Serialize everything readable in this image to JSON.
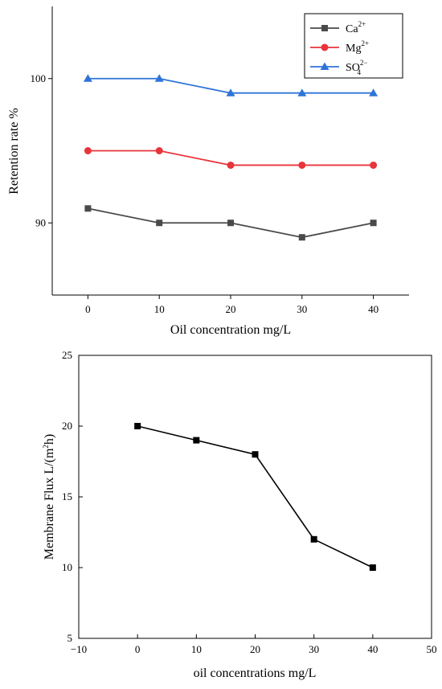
{
  "chart_data": [
    {
      "type": "line",
      "xlabel": "Oil concentration mg/L",
      "ylabel": "Retention rate %",
      "x": [
        0,
        10,
        20,
        30,
        40
      ],
      "xticks": [
        "0",
        "10",
        "20",
        "30",
        "40"
      ],
      "yticks": [
        "90",
        "100"
      ],
      "xlim": [
        -5,
        45
      ],
      "ylim": [
        85,
        105
      ],
      "grid": false,
      "legend": "top-right",
      "series": [
        {
          "name": "Ca²⁺",
          "ion": "Ca",
          "sup": "2+",
          "sub": "",
          "color": "#4a4a4a",
          "marker": "square",
          "values": [
            91,
            90,
            90,
            89,
            90
          ]
        },
        {
          "name": "Mg²⁺",
          "ion": "Mg",
          "sup": "2+",
          "sub": "",
          "color": "#e8343a",
          "marker": "circle",
          "values": [
            95,
            95,
            94,
            94,
            94
          ]
        },
        {
          "name": "SO₄²⁻",
          "ion": "SO",
          "sup": "2−",
          "sub": "4",
          "color": "#2e74d8",
          "marker": "triangle",
          "values": [
            100,
            100,
            99,
            99,
            99
          ]
        }
      ]
    },
    {
      "type": "line",
      "xlabel": "oil concentrations mg/L",
      "ylabel": "Membrane Flux L/(m²h)",
      "x": [
        0,
        10,
        20,
        30,
        40
      ],
      "xticks": [
        "−10",
        "0",
        "10",
        "20",
        "30",
        "40",
        "50"
      ],
      "yticks": [
        "5",
        "10",
        "15",
        "20",
        "25"
      ],
      "xlim": [
        -10,
        50
      ],
      "ylim": [
        5,
        25
      ],
      "grid": false,
      "legend": "none",
      "series": [
        {
          "color": "#000000",
          "marker": "square",
          "values": [
            20,
            19,
            18,
            12,
            10
          ]
        }
      ]
    }
  ]
}
